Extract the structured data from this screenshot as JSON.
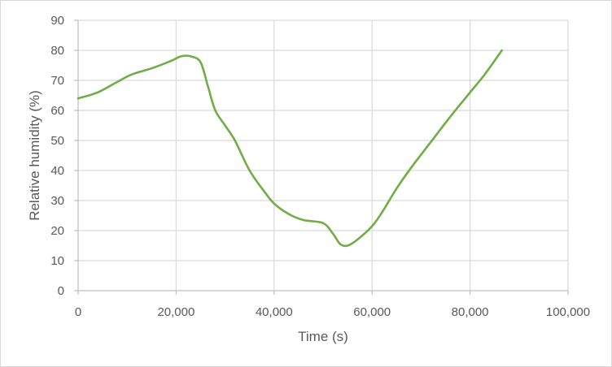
{
  "chart_data": {
    "type": "line",
    "title": "",
    "xlabel": "Time (s)",
    "ylabel": "Relative humidity (%)",
    "xlim": [
      0,
      100000
    ],
    "ylim": [
      0,
      90
    ],
    "x_ticks": [
      0,
      20000,
      40000,
      60000,
      80000,
      100000
    ],
    "x_tick_labels": [
      "0",
      "20,000",
      "40,000",
      "60,000",
      "80,000",
      "100,000"
    ],
    "y_ticks": [
      0,
      10,
      20,
      30,
      40,
      50,
      60,
      70,
      80,
      90
    ],
    "y_tick_labels": [
      "0",
      "10",
      "20",
      "30",
      "40",
      "50",
      "60",
      "70",
      "80",
      "90"
    ],
    "grid": true,
    "legend": "none",
    "series": [
      {
        "color": "#70ad47",
        "x": [
          0,
          4000,
          8000,
          11000,
          15000,
          19000,
          21000,
          23000,
          25000,
          26500,
          28000,
          30000,
          32000,
          35000,
          38000,
          40000,
          43000,
          46000,
          50000,
          52000,
          53500,
          55000,
          57000,
          60000,
          62000,
          65000,
          68000,
          72000,
          76000,
          80000,
          83000,
          86500
        ],
        "y": [
          64,
          66,
          69.5,
          72,
          74,
          76.5,
          78,
          78,
          76,
          68,
          60,
          55,
          50,
          40,
          33,
          29,
          25.5,
          23.5,
          22.5,
          19,
          15.5,
          15,
          17,
          21.5,
          26,
          34,
          41,
          49.5,
          58,
          66,
          72,
          80
        ]
      }
    ]
  }
}
